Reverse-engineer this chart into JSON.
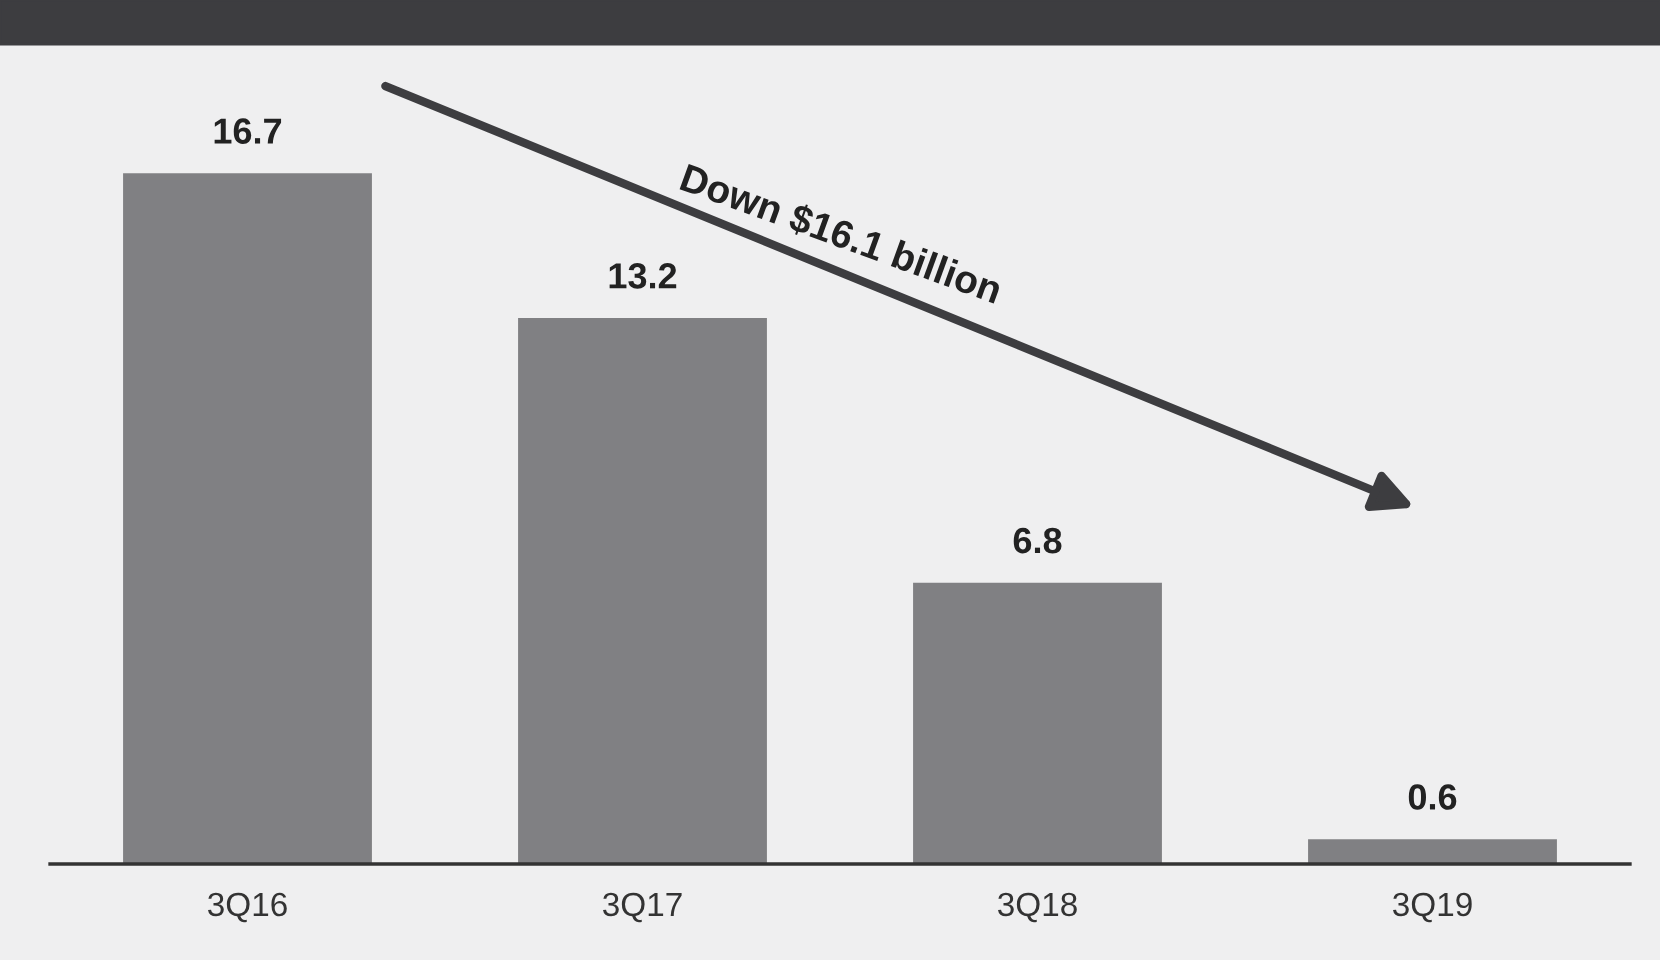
{
  "chart_data": {
    "type": "bar",
    "categories": [
      "3Q16",
      "3Q17",
      "3Q18",
      "3Q19"
    ],
    "values": [
      16.7,
      13.2,
      6.8,
      0.6
    ],
    "color": "#808083",
    "tick_labels": "x",
    "data_labels": true,
    "grid": false,
    "legend": false,
    "annotations": [
      "Down $16.1 billion"
    ]
  }
}
